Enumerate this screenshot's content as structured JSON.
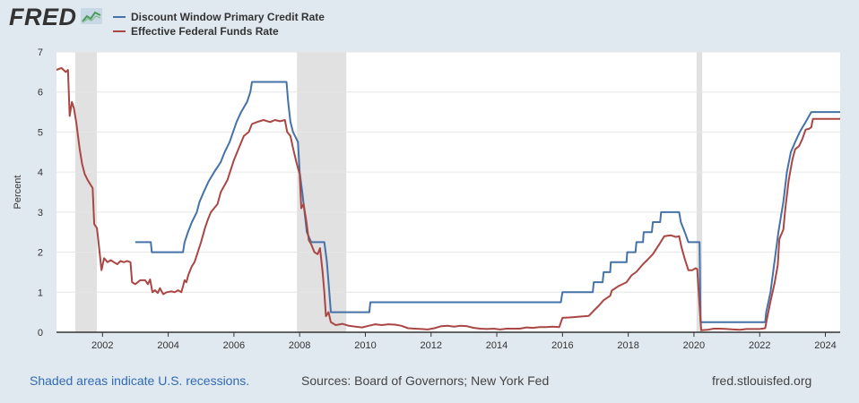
{
  "header": {
    "logo_text": "FRED"
  },
  "legend": [
    {
      "label": "Discount Window Primary Credit Rate",
      "color": "#4572a7"
    },
    {
      "label": "Effective Federal Funds Rate",
      "color": "#aa4643"
    }
  ],
  "footer": {
    "recession_note": "Shaded areas indicate U.S. recessions.",
    "sources": "Sources: Board of Governors; New York Fed",
    "site": "fred.stlouisfed.org"
  },
  "colors": {
    "background": "#e1e9f0",
    "plot_bg": "#ffffff",
    "recession": "#e1e1e1",
    "grid": "#e6e6e6",
    "link": "#2f6ab5"
  },
  "chart_data": {
    "type": "line",
    "title": "",
    "xlabel": "",
    "ylabel": "Percent",
    "xlim": [
      2000.6,
      2024.45
    ],
    "ylim": [
      0,
      7
    ],
    "yticks": [
      0,
      1,
      2,
      3,
      4,
      5,
      6,
      7
    ],
    "xticks": [
      2002,
      2004,
      2006,
      2008,
      2010,
      2012,
      2014,
      2016,
      2018,
      2020,
      2022,
      2024
    ],
    "grid": true,
    "recessions": [
      [
        2001.17,
        2001.83
      ],
      [
        2007.92,
        2009.42
      ],
      [
        2020.08,
        2020.25
      ]
    ],
    "series": [
      {
        "name": "Discount Window Primary Credit Rate",
        "color": "#4572a7",
        "points": [
          [
            2003.0,
            2.25
          ],
          [
            2003.47,
            2.25
          ],
          [
            2003.5,
            2.0
          ],
          [
            2004.45,
            2.0
          ],
          [
            2004.5,
            2.25
          ],
          [
            2004.6,
            2.5
          ],
          [
            2004.72,
            2.75
          ],
          [
            2004.87,
            3.0
          ],
          [
            2004.95,
            3.25
          ],
          [
            2005.08,
            3.5
          ],
          [
            2005.22,
            3.75
          ],
          [
            2005.4,
            4.0
          ],
          [
            2005.6,
            4.25
          ],
          [
            2005.72,
            4.5
          ],
          [
            2005.87,
            4.75
          ],
          [
            2006.08,
            5.25
          ],
          [
            2006.22,
            5.5
          ],
          [
            2006.4,
            5.75
          ],
          [
            2006.5,
            6.0
          ],
          [
            2006.55,
            6.25
          ],
          [
            2007.6,
            6.25
          ],
          [
            2007.65,
            5.75
          ],
          [
            2007.72,
            5.25
          ],
          [
            2007.8,
            5.0
          ],
          [
            2007.95,
            4.75
          ],
          [
            2008.0,
            4.0
          ],
          [
            2008.08,
            3.5
          ],
          [
            2008.22,
            2.5
          ],
          [
            2008.35,
            2.25
          ],
          [
            2008.75,
            2.25
          ],
          [
            2008.83,
            1.75
          ],
          [
            2008.88,
            1.25
          ],
          [
            2008.95,
            0.5
          ],
          [
            2010.12,
            0.5
          ],
          [
            2010.15,
            0.75
          ],
          [
            2015.95,
            0.75
          ],
          [
            2016.0,
            1.0
          ],
          [
            2016.92,
            1.0
          ],
          [
            2016.95,
            1.25
          ],
          [
            2017.22,
            1.25
          ],
          [
            2017.25,
            1.5
          ],
          [
            2017.45,
            1.5
          ],
          [
            2017.47,
            1.75
          ],
          [
            2017.95,
            1.75
          ],
          [
            2017.97,
            2.0
          ],
          [
            2018.22,
            2.0
          ],
          [
            2018.25,
            2.25
          ],
          [
            2018.45,
            2.25
          ],
          [
            2018.47,
            2.5
          ],
          [
            2018.72,
            2.5
          ],
          [
            2018.75,
            2.75
          ],
          [
            2018.97,
            2.75
          ],
          [
            2019.0,
            3.0
          ],
          [
            2019.55,
            3.0
          ],
          [
            2019.6,
            2.75
          ],
          [
            2019.72,
            2.5
          ],
          [
            2019.83,
            2.25
          ],
          [
            2020.17,
            2.25
          ],
          [
            2020.2,
            0.25
          ],
          [
            2022.17,
            0.25
          ],
          [
            2022.2,
            0.5
          ],
          [
            2022.33,
            1.0
          ],
          [
            2022.45,
            1.75
          ],
          [
            2022.57,
            2.5
          ],
          [
            2022.72,
            3.25
          ],
          [
            2022.83,
            4.0
          ],
          [
            2022.95,
            4.5
          ],
          [
            2023.08,
            4.75
          ],
          [
            2023.22,
            5.0
          ],
          [
            2023.4,
            5.25
          ],
          [
            2023.57,
            5.5
          ],
          [
            2024.45,
            5.5
          ]
        ]
      },
      {
        "name": "Effective Federal Funds Rate",
        "color": "#aa4643",
        "points": [
          [
            2000.6,
            6.55
          ],
          [
            2000.75,
            6.6
          ],
          [
            2000.88,
            6.5
          ],
          [
            2000.95,
            6.55
          ],
          [
            2001.0,
            5.4
          ],
          [
            2001.07,
            5.75
          ],
          [
            2001.13,
            5.6
          ],
          [
            2001.2,
            5.25
          ],
          [
            2001.3,
            4.6
          ],
          [
            2001.38,
            4.2
          ],
          [
            2001.46,
            3.95
          ],
          [
            2001.55,
            3.8
          ],
          [
            2001.7,
            3.6
          ],
          [
            2001.75,
            2.7
          ],
          [
            2001.83,
            2.6
          ],
          [
            2001.9,
            2.1
          ],
          [
            2001.97,
            1.55
          ],
          [
            2002.05,
            1.85
          ],
          [
            2002.15,
            1.75
          ],
          [
            2002.25,
            1.8
          ],
          [
            2002.35,
            1.75
          ],
          [
            2002.45,
            1.7
          ],
          [
            2002.55,
            1.78
          ],
          [
            2002.65,
            1.75
          ],
          [
            2002.75,
            1.78
          ],
          [
            2002.85,
            1.75
          ],
          [
            2002.9,
            1.25
          ],
          [
            2003.0,
            1.2
          ],
          [
            2003.15,
            1.3
          ],
          [
            2003.3,
            1.3
          ],
          [
            2003.38,
            1.2
          ],
          [
            2003.45,
            1.32
          ],
          [
            2003.52,
            1.0
          ],
          [
            2003.6,
            1.05
          ],
          [
            2003.68,
            0.98
          ],
          [
            2003.75,
            1.1
          ],
          [
            2003.8,
            1.02
          ],
          [
            2003.85,
            0.95
          ],
          [
            2003.95,
            1.0
          ],
          [
            2004.1,
            1.02
          ],
          [
            2004.2,
            1.0
          ],
          [
            2004.3,
            1.05
          ],
          [
            2004.4,
            1.0
          ],
          [
            2004.5,
            1.3
          ],
          [
            2004.55,
            1.25
          ],
          [
            2004.62,
            1.45
          ],
          [
            2004.72,
            1.65
          ],
          [
            2004.8,
            1.75
          ],
          [
            2004.9,
            2.0
          ],
          [
            2005.0,
            2.25
          ],
          [
            2005.12,
            2.6
          ],
          [
            2005.2,
            2.8
          ],
          [
            2005.3,
            3.0
          ],
          [
            2005.5,
            3.2
          ],
          [
            2005.6,
            3.5
          ],
          [
            2005.8,
            3.8
          ],
          [
            2006.0,
            4.3
          ],
          [
            2006.15,
            4.6
          ],
          [
            2006.3,
            4.9
          ],
          [
            2006.45,
            5.0
          ],
          [
            2006.55,
            5.2
          ],
          [
            2006.7,
            5.25
          ],
          [
            2006.9,
            5.3
          ],
          [
            2007.1,
            5.25
          ],
          [
            2007.25,
            5.3
          ],
          [
            2007.4,
            5.27
          ],
          [
            2007.55,
            5.3
          ],
          [
            2007.62,
            5.0
          ],
          [
            2007.72,
            4.9
          ],
          [
            2007.8,
            4.6
          ],
          [
            2007.9,
            4.25
          ],
          [
            2008.0,
            3.95
          ],
          [
            2008.05,
            3.1
          ],
          [
            2008.12,
            3.2
          ],
          [
            2008.2,
            2.8
          ],
          [
            2008.28,
            2.3
          ],
          [
            2008.35,
            2.2
          ],
          [
            2008.45,
            2.0
          ],
          [
            2008.55,
            1.95
          ],
          [
            2008.62,
            2.1
          ],
          [
            2008.7,
            1.5
          ],
          [
            2008.75,
            1.0
          ],
          [
            2008.8,
            0.4
          ],
          [
            2008.88,
            0.5
          ],
          [
            2008.95,
            0.25
          ],
          [
            2009.1,
            0.18
          ],
          [
            2009.3,
            0.21
          ],
          [
            2009.5,
            0.16
          ],
          [
            2009.7,
            0.14
          ],
          [
            2009.9,
            0.12
          ],
          [
            2010.1,
            0.16
          ],
          [
            2010.3,
            0.2
          ],
          [
            2010.5,
            0.18
          ],
          [
            2010.7,
            0.2
          ],
          [
            2010.9,
            0.19
          ],
          [
            2011.1,
            0.16
          ],
          [
            2011.3,
            0.1
          ],
          [
            2011.5,
            0.09
          ],
          [
            2011.7,
            0.08
          ],
          [
            2011.9,
            0.07
          ],
          [
            2012.1,
            0.1
          ],
          [
            2012.3,
            0.15
          ],
          [
            2012.5,
            0.16
          ],
          [
            2012.7,
            0.14
          ],
          [
            2012.9,
            0.16
          ],
          [
            2013.1,
            0.15
          ],
          [
            2013.3,
            0.11
          ],
          [
            2013.5,
            0.09
          ],
          [
            2013.7,
            0.08
          ],
          [
            2013.9,
            0.09
          ],
          [
            2014.1,
            0.07
          ],
          [
            2014.3,
            0.09
          ],
          [
            2014.5,
            0.09
          ],
          [
            2014.7,
            0.09
          ],
          [
            2014.9,
            0.12
          ],
          [
            2015.1,
            0.11
          ],
          [
            2015.3,
            0.13
          ],
          [
            2015.5,
            0.13
          ],
          [
            2015.7,
            0.14
          ],
          [
            2015.9,
            0.13
          ],
          [
            2016.0,
            0.36
          ],
          [
            2016.2,
            0.37
          ],
          [
            2016.5,
            0.39
          ],
          [
            2016.8,
            0.41
          ],
          [
            2016.95,
            0.54
          ],
          [
            2017.1,
            0.66
          ],
          [
            2017.25,
            0.8
          ],
          [
            2017.45,
            0.91
          ],
          [
            2017.5,
            1.04
          ],
          [
            2017.7,
            1.15
          ],
          [
            2017.95,
            1.25
          ],
          [
            2018.1,
            1.42
          ],
          [
            2018.25,
            1.51
          ],
          [
            2018.45,
            1.7
          ],
          [
            2018.6,
            1.82
          ],
          [
            2018.75,
            1.95
          ],
          [
            2018.95,
            2.2
          ],
          [
            2019.1,
            2.4
          ],
          [
            2019.3,
            2.42
          ],
          [
            2019.45,
            2.38
          ],
          [
            2019.55,
            2.4
          ],
          [
            2019.62,
            2.13
          ],
          [
            2019.72,
            1.83
          ],
          [
            2019.83,
            1.55
          ],
          [
            2019.95,
            1.55
          ],
          [
            2020.05,
            1.6
          ],
          [
            2020.1,
            1.58
          ],
          [
            2020.17,
            0.65
          ],
          [
            2020.22,
            0.05
          ],
          [
            2020.4,
            0.06
          ],
          [
            2020.6,
            0.09
          ],
          [
            2020.8,
            0.09
          ],
          [
            2021.0,
            0.08
          ],
          [
            2021.2,
            0.07
          ],
          [
            2021.4,
            0.06
          ],
          [
            2021.6,
            0.08
          ],
          [
            2021.8,
            0.08
          ],
          [
            2022.0,
            0.08
          ],
          [
            2022.17,
            0.1
          ],
          [
            2022.22,
            0.33
          ],
          [
            2022.33,
            0.77
          ],
          [
            2022.45,
            1.21
          ],
          [
            2022.55,
            1.68
          ],
          [
            2022.6,
            2.33
          ],
          [
            2022.72,
            2.56
          ],
          [
            2022.78,
            3.08
          ],
          [
            2022.88,
            3.78
          ],
          [
            2022.95,
            4.1
          ],
          [
            2023.0,
            4.33
          ],
          [
            2023.08,
            4.57
          ],
          [
            2023.2,
            4.65
          ],
          [
            2023.3,
            4.83
          ],
          [
            2023.4,
            5.06
          ],
          [
            2023.5,
            5.08
          ],
          [
            2023.57,
            5.12
          ],
          [
            2023.62,
            5.33
          ],
          [
            2024.45,
            5.33
          ]
        ]
      }
    ]
  }
}
